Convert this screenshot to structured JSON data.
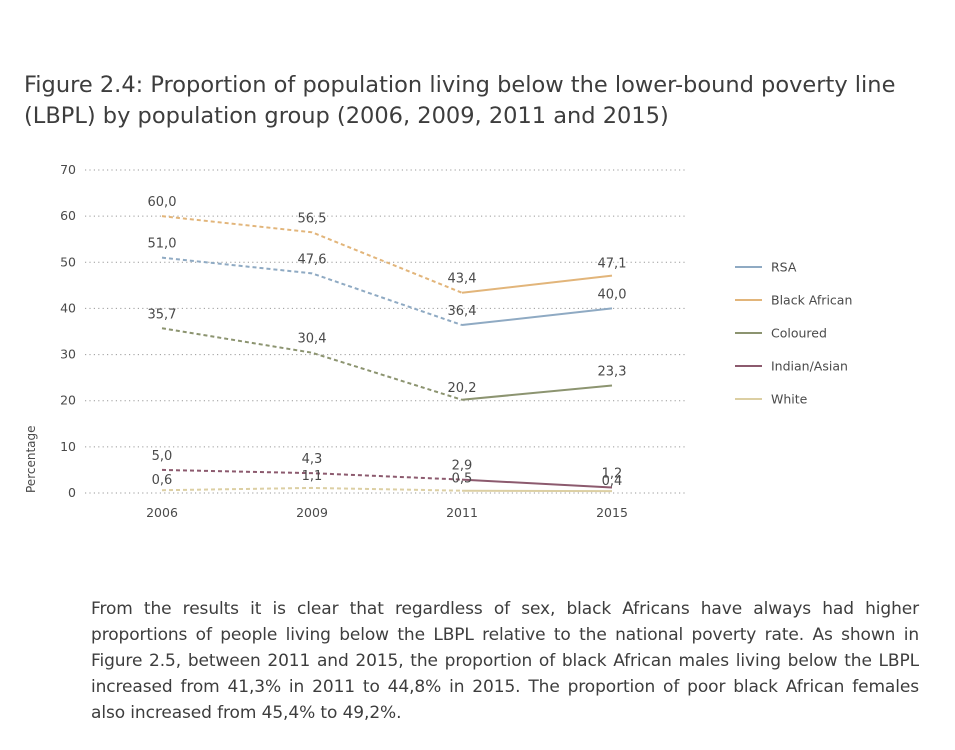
{
  "figure": {
    "title": "Figure 2.4: Proportion of population living below the lower-bound poverty line (LBPL) by population group (2006, 2009, 2011 and 2015)"
  },
  "chart_data": {
    "type": "line",
    "categories": [
      "2006",
      "2009",
      "2011",
      "2015"
    ],
    "ylabel": "Percentage",
    "xlabel": "",
    "ylim": [
      0,
      70
    ],
    "yticks": [
      "0",
      "10",
      "20",
      "30",
      "40",
      "50",
      "60",
      "70"
    ],
    "grid": "horizontal dotted",
    "legend_position": "right",
    "note": "",
    "series": [
      {
        "name": "RSA",
        "color": "#8faac3",
        "values": [
          51.0,
          47.6,
          36.4,
          40.0
        ],
        "labels": [
          "51,0",
          "47,6",
          "36,4",
          "40,0"
        ]
      },
      {
        "name": "Black African",
        "color": "#e2b57a",
        "values": [
          60.0,
          56.5,
          43.4,
          47.1
        ],
        "labels": [
          "60,0",
          "56,5",
          "43,4",
          "47,1"
        ]
      },
      {
        "name": "Coloured",
        "color": "#8c9470",
        "values": [
          35.7,
          30.4,
          20.2,
          23.3
        ],
        "labels": [
          "35,7",
          "30,4",
          "20,2",
          "23,3"
        ]
      },
      {
        "name": "Indian/Asian",
        "color": "#8c5a6e",
        "values": [
          5.0,
          4.3,
          2.9,
          1.2
        ],
        "labels": [
          "5,0",
          "4,3",
          "2,9",
          "1,2"
        ]
      },
      {
        "name": "White",
        "color": "#dccfa3",
        "values": [
          0.6,
          1.1,
          0.5,
          0.4
        ],
        "labels": [
          "0,6",
          "1,1",
          "0,5",
          "0,4"
        ]
      }
    ],
    "line_style": "dashed for 2006–2011, solid for 2011–2015"
  },
  "body_text": "From the results it is clear that regardless of sex, black Africans have always had higher proportions of people living below the LBPL relative to the national poverty rate. As shown in Figure 2.5, between 2011 and 2015, the proportion of black African males living below the LBPL increased from 41,3% in 2011 to 44,8% in 2015. The proportion of poor black African females also increased from 45,4% to 49,2%."
}
